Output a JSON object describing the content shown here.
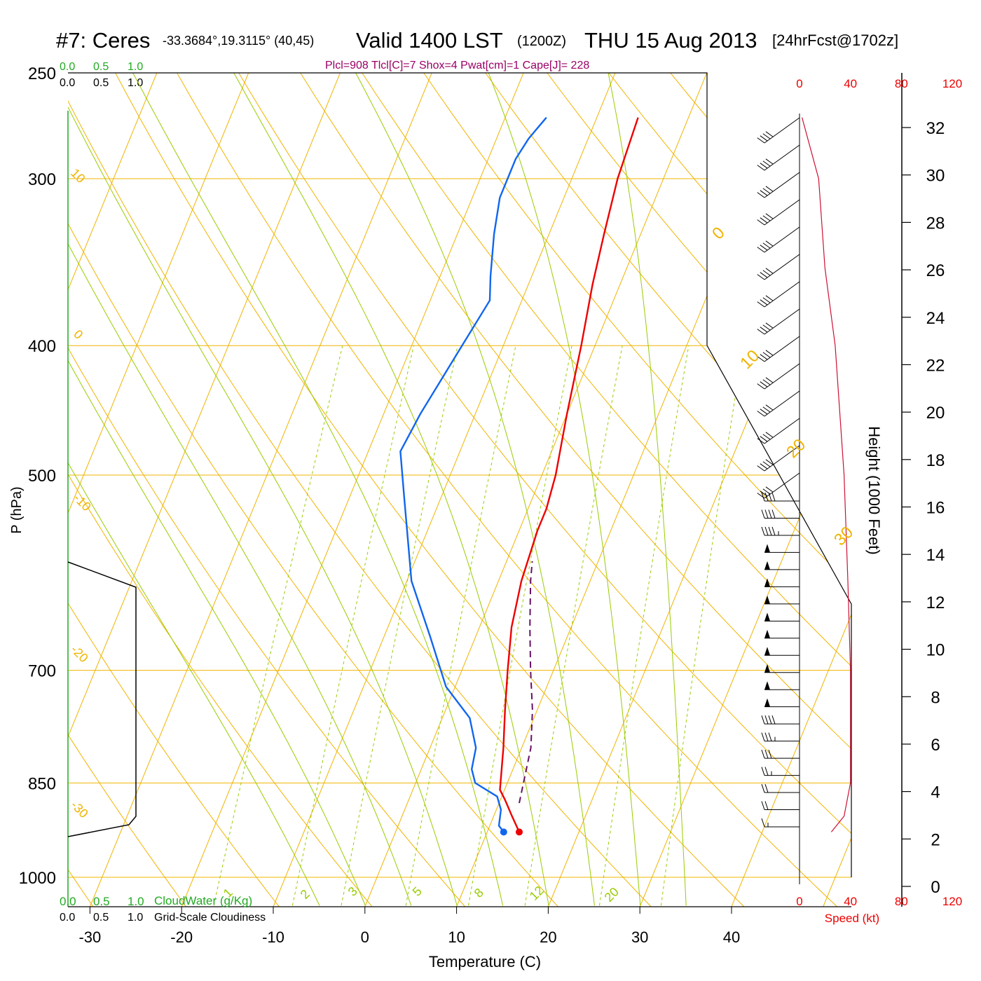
{
  "header": {
    "station": "#7: Ceres",
    "coords": "-33.3684°,19.3115° (40,45)",
    "valid": "Valid 1400 LST",
    "zulu": "(1200Z)",
    "date": "THU 15 Aug 2013",
    "fcst": "[24hrFcst@1702z]",
    "indices": "Plcl=908 Tlcl[C]=7 Shox=4 Pwat[cm]=1 Cape[J]= 228"
  },
  "colors": {
    "isobar": "#f0b400",
    "isotherm": "#f0b400",
    "dry_adiabat": "#f0b400",
    "moist_adiabat": "#99cc00",
    "mixing_ratio": "#99cc00",
    "temperature": "#ee0000",
    "dewpoint": "#1166ee",
    "parcel": "#661166",
    "cloud_water_scale": "#22aa22",
    "speed": "#ee0000",
    "indices": "#990066"
  },
  "top_scales": {
    "cloud_water": [
      "0.0",
      "0.5",
      "1.0"
    ],
    "cloudiness": [
      "0.0",
      "0.5",
      "1.0"
    ]
  },
  "bottom_scales": {
    "cloud_water": [
      "0.0",
      "0.5",
      "1.0"
    ],
    "cloud_water_label": "CloudWater (g/Kg)",
    "cloudiness": [
      "0.0",
      "0.5",
      "1.0"
    ],
    "cloudiness_label": "Grid-Scale Cloudiness"
  },
  "speed_axis": {
    "ticks": [
      "0",
      "40",
      "80",
      "120"
    ],
    "label": "Speed (kt)"
  },
  "chart_data": {
    "type": "line",
    "title": "#7: Ceres Valid 1400 LST (1200Z) THU 15 Aug 2013",
    "xlabel": "Temperature (C)",
    "ylabel": "P (hPa)",
    "y2label": "Height (1000 Feet)",
    "x_ticks": [
      "-30",
      "-20",
      "-10",
      "0",
      "10",
      "20",
      "30",
      "40"
    ],
    "p_ticks": [
      "250",
      "300",
      "400",
      "500",
      "700",
      "850",
      "1000"
    ],
    "height_ticks": [
      "0",
      "2",
      "4",
      "6",
      "8",
      "10",
      "12",
      "14",
      "16",
      "18",
      "20",
      "22",
      "24",
      "26",
      "28",
      "30",
      "32"
    ],
    "xlim": [
      -33,
      47
    ],
    "ylim_hpa": [
      1050,
      250
    ],
    "y_scale": "log",
    "dry_adiabat_labels": [
      "10",
      "0",
      "-10",
      "-20",
      "-30"
    ],
    "isotherm_labels": [
      "0",
      "10",
      "20",
      "30"
    ],
    "mixing_ratio_labels": [
      "1",
      "2",
      "3",
      "5",
      "8",
      "12",
      "20"
    ],
    "series": [
      {
        "name": "Temperature",
        "points": [
          [
            13.5,
            925
          ],
          [
            12.0,
            900
          ],
          [
            10.5,
            875
          ],
          [
            9.5,
            860
          ],
          [
            8.0,
            800
          ],
          [
            6.5,
            750
          ],
          [
            5.0,
            700
          ],
          [
            3.5,
            650
          ],
          [
            2.5,
            600
          ],
          [
            2.0,
            550
          ],
          [
            2.0,
            530
          ],
          [
            1.5,
            500
          ],
          [
            0.0,
            450
          ],
          [
            -1.5,
            400
          ],
          [
            -3.0,
            360
          ],
          [
            -4.0,
            330
          ],
          [
            -5.0,
            300
          ],
          [
            -5.5,
            270
          ]
        ]
      },
      {
        "name": "Dewpoint",
        "points": [
          [
            11.8,
            925
          ],
          [
            11.0,
            915
          ],
          [
            10.5,
            890
          ],
          [
            9.5,
            870
          ],
          [
            6.5,
            850
          ],
          [
            5.5,
            830
          ],
          [
            5.0,
            800
          ],
          [
            3.0,
            760
          ],
          [
            -1.0,
            720
          ],
          [
            -5.0,
            660
          ],
          [
            -9.5,
            600
          ],
          [
            -14.0,
            520
          ],
          [
            -16.5,
            480
          ],
          [
            -16.0,
            450
          ],
          [
            -14.5,
            400
          ],
          [
            -13.5,
            370
          ],
          [
            -14.5,
            355
          ],
          [
            -16.0,
            330
          ],
          [
            -17.0,
            310
          ],
          [
            -17.0,
            290
          ],
          [
            -16.5,
            280
          ],
          [
            -15.5,
            270
          ]
        ]
      },
      {
        "name": "Parcel",
        "points": [
          [
            12.2,
            880
          ],
          [
            11.0,
            800
          ],
          [
            9.5,
            750
          ],
          [
            7.5,
            700
          ],
          [
            5.5,
            650
          ],
          [
            3.5,
            600
          ],
          [
            2.8,
            580
          ]
        ]
      }
    ],
    "wind_speed_points": [
      [
        25,
        925
      ],
      [
        35,
        900
      ],
      [
        40,
        850
      ],
      [
        40,
        800
      ],
      [
        40,
        700
      ],
      [
        38,
        600
      ],
      [
        35,
        500
      ],
      [
        28,
        400
      ],
      [
        20,
        350
      ],
      [
        15,
        300
      ],
      [
        2,
        270
      ]
    ],
    "wind_barbs_kt": [
      40,
      40,
      40,
      40,
      40,
      40,
      40,
      40,
      40,
      40,
      40,
      40,
      40,
      40,
      40,
      40,
      45,
      50,
      50,
      50,
      50,
      50,
      50,
      50,
      50,
      50,
      50,
      40,
      35,
      30,
      25,
      20,
      20,
      15
    ]
  }
}
